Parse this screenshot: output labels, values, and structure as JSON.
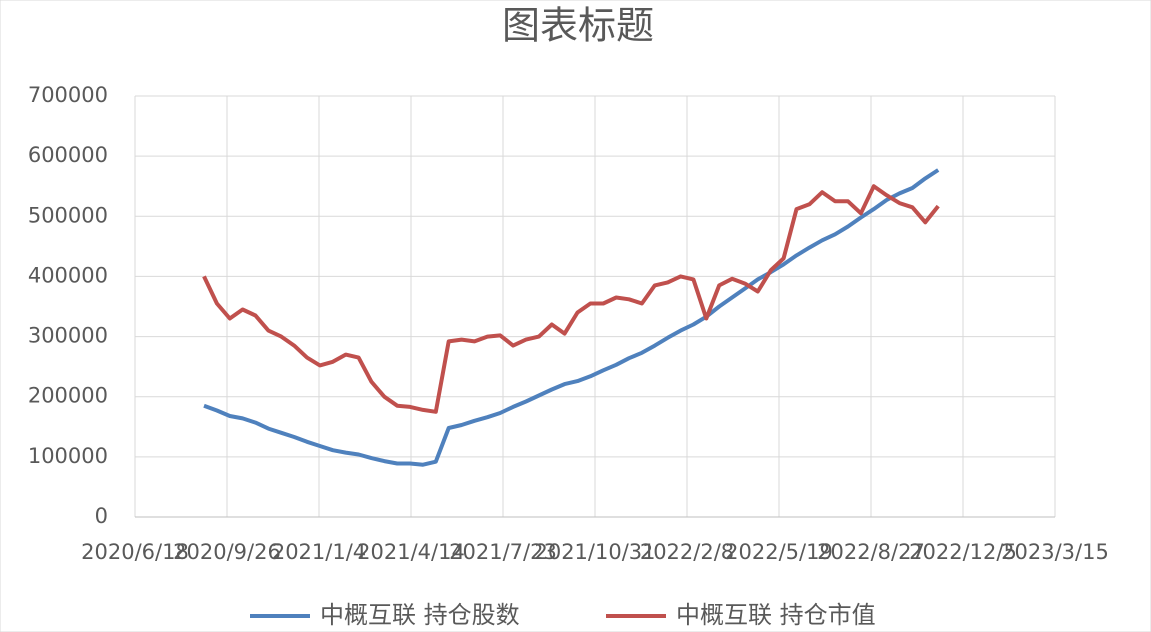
{
  "chart_data": {
    "type": "line",
    "title": "图表标题",
    "x": [
      "2020/9/1",
      "2020/9/15",
      "2020/9/29",
      "2020/10/13",
      "2020/10/27",
      "2020/11/10",
      "2020/11/24",
      "2020/12/8",
      "2020/12/22",
      "2021/1/5",
      "2021/1/19",
      "2021/2/2",
      "2021/2/16",
      "2021/3/2",
      "2021/3/16",
      "2021/3/30",
      "2021/4/13",
      "2021/4/27",
      "2021/5/11",
      "2021/5/25",
      "2021/6/8",
      "2021/6/22",
      "2021/7/6",
      "2021/7/20",
      "2021/8/3",
      "2021/8/17",
      "2021/8/31",
      "2021/9/14",
      "2021/9/28",
      "2021/10/12",
      "2021/10/26",
      "2021/11/9",
      "2021/11/23",
      "2021/12/7",
      "2021/12/21",
      "2022/1/4",
      "2022/1/18",
      "2022/2/1",
      "2022/2/15",
      "2022/3/1",
      "2022/3/15",
      "2022/3/29",
      "2022/4/12",
      "2022/4/26",
      "2022/5/10",
      "2022/5/24",
      "2022/6/7",
      "2022/6/21",
      "2022/7/5",
      "2022/7/19",
      "2022/8/2",
      "2022/8/16",
      "2022/8/30",
      "2022/9/13",
      "2022/9/27",
      "2022/10/11",
      "2022/10/25",
      "2022/11/8"
    ],
    "series": [
      {
        "name": "中概互联 持仓股数",
        "color": "#4f81bd",
        "values": [
          185000,
          177000,
          168000,
          164000,
          157000,
          147000,
          140000,
          133000,
          125000,
          118000,
          111000,
          107000,
          104000,
          98000,
          93000,
          89000,
          89000,
          87000,
          92000,
          148000,
          153000,
          160000,
          166000,
          173000,
          183000,
          192000,
          202000,
          212000,
          221000,
          226000,
          234000,
          244000,
          253000,
          264000,
          273000,
          285000,
          298000,
          310000,
          320000,
          333000,
          350000,
          365000,
          380000,
          395000,
          407000,
          420000,
          435000,
          448000,
          460000,
          470000,
          483000,
          498000,
          512000,
          527000,
          538000,
          547000,
          563000,
          577000
        ]
      },
      {
        "name": "中概互联 持仓市值",
        "color": "#c0504d",
        "values": [
          400000,
          355000,
          330000,
          345000,
          335000,
          310000,
          300000,
          285000,
          265000,
          252000,
          258000,
          270000,
          265000,
          225000,
          200000,
          185000,
          183000,
          178000,
          175000,
          292000,
          295000,
          292000,
          300000,
          302000,
          285000,
          295000,
          300000,
          320000,
          305000,
          340000,
          355000,
          355000,
          365000,
          362000,
          355000,
          385000,
          390000,
          400000,
          395000,
          330000,
          385000,
          396000,
          388000,
          375000,
          410000,
          430000,
          512000,
          520000,
          540000,
          525000,
          525000,
          505000,
          550000,
          535000,
          522000,
          515000,
          490000,
          517000
        ]
      }
    ],
    "xlim": [
      "2020/6/18",
      "2023/3/15"
    ],
    "xticks": [
      "2020/6/18",
      "2020/9/26",
      "2021/1/4",
      "2021/4/14",
      "2021/7/23",
      "2021/10/31",
      "2022/2/8",
      "2022/5/19",
      "2022/8/27",
      "2022/12/5",
      "2023/3/15"
    ],
    "ylim": [
      0,
      700000
    ],
    "yticks": [
      0,
      100000,
      200000,
      300000,
      400000,
      500000,
      600000,
      700000
    ],
    "grid": true,
    "legend": "bottom"
  }
}
